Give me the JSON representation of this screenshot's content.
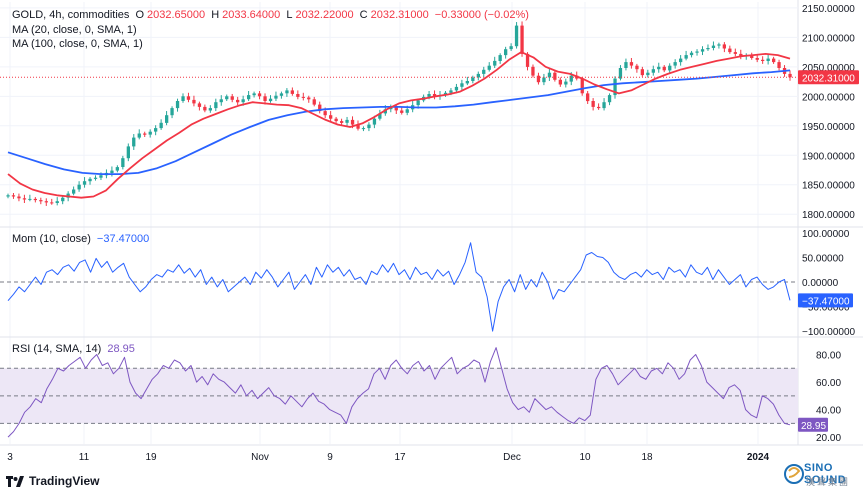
{
  "legend": {
    "symbol": "GOLD, 4h, commodities",
    "o_label": "O",
    "o_value": "2032.65000",
    "h_label": "H",
    "h_value": "2033.64000",
    "l_label": "L",
    "l_value": "2032.22000",
    "c_label": "C",
    "c_value": "2032.31000",
    "change": "−0.33000 (−0.02%)",
    "ma20": "MA (20, close, 0, SMA, 1)",
    "ma100": "MA (100, close, 0, SMA, 1)",
    "mom_name": "Mom (10, close)",
    "mom_value": "−37.47000",
    "rsi_name": "RSI (14, SMA, 14)",
    "rsi_value": "28.95"
  },
  "brand": "TradingView",
  "watermark": {
    "name": "SINO SOUND",
    "sub": "漢聲集團"
  },
  "colors": {
    "up": "#26a69a",
    "down": "#f23645",
    "ma20": "#f23645",
    "ma100": "#2962ff",
    "mom": "#2962ff",
    "rsi": "#7e57c2",
    "rsi_band": "#ede7f6",
    "grid": "#f0f3fa",
    "axis_text": "#131722"
  },
  "chart_data": [
    {
      "type": "candlestick",
      "title": "GOLD, 4h, commodities",
      "ylim": [
        1780,
        2160
      ],
      "y_ticks": [
        "2150.00000",
        "2100.00000",
        "2050.00000",
        "2000.00000",
        "1950.00000",
        "1900.00000",
        "1850.00000",
        "1800.00000"
      ],
      "y_tick_values": [
        2150,
        2100,
        2050,
        2000,
        1950,
        1900,
        1850,
        1800
      ],
      "x_ticks": [
        "3",
        "11",
        "19",
        "Nov",
        "9",
        "17",
        "Dec",
        "10",
        "18",
        "2024"
      ],
      "last_price": "2032.31000",
      "last_value": 2032.31,
      "close_path": [
        1832,
        1830,
        1827,
        1825,
        1826,
        1824,
        1822,
        1820,
        1819,
        1822,
        1828,
        1835,
        1842,
        1850,
        1856,
        1860,
        1862,
        1866,
        1870,
        1874,
        1880,
        1895,
        1915,
        1930,
        1937,
        1935,
        1940,
        1946,
        1955,
        1968,
        1980,
        1992,
        2000,
        1994,
        1988,
        1982,
        1976,
        1980,
        1990,
        1995,
        2000,
        1994,
        1990,
        1995,
        2002,
        2005,
        2000,
        1992,
        1996,
        2001,
        2005,
        2010,
        2004,
        1999,
        1998,
        1995,
        1986,
        1975,
        1968,
        1962,
        1958,
        1955,
        1960,
        1952,
        1945,
        1946,
        1952,
        1962,
        1971,
        1978,
        1983,
        1976,
        1972,
        1978,
        1985,
        1993,
        1999,
        2004,
        2000,
        2002,
        2006,
        2010,
        2016,
        2022,
        2026,
        2032,
        2038,
        2045,
        2052,
        2060,
        2070,
        2080,
        2085,
        2120,
        2072,
        2050,
        2035,
        2024,
        2032,
        2040,
        2028,
        2020,
        2025,
        2035,
        2030,
        2005,
        1992,
        1982,
        1980,
        1990,
        2002,
        2030,
        2048,
        2058,
        2052,
        2046,
        2036,
        2040,
        2046,
        2050,
        2044,
        2052,
        2058,
        2064,
        2070,
        2074,
        2076,
        2080,
        2082,
        2086,
        2088,
        2081,
        2075,
        2072,
        2068,
        2070,
        2065,
        2062,
        2060,
        2064,
        2058,
        2048,
        2038,
        2032.31
      ],
      "ma20": [
        1868,
        1852,
        1842,
        1836,
        1832,
        1830,
        1828,
        1830,
        1840,
        1860,
        1878,
        1895,
        1910,
        1925,
        1938,
        1952,
        1962,
        1970,
        1978,
        1985,
        1990,
        1988,
        1986,
        1985,
        1980,
        1970,
        1960,
        1952,
        1948,
        1954,
        1965,
        1978,
        1988,
        1993,
        1996,
        2000,
        2003,
        2008,
        2018,
        2030,
        2045,
        2062,
        2075,
        2066,
        2050,
        2042,
        2038,
        2030,
        2020,
        2012,
        2005,
        2010,
        2020,
        2030,
        2038,
        2045,
        2050,
        2055,
        2060,
        2064,
        2068,
        2070,
        2072,
        2070,
        2064
      ],
      "ma100": [
        1905,
        1895,
        1885,
        1876,
        1870,
        1868,
        1868,
        1870,
        1878,
        1890,
        1905,
        1920,
        1935,
        1948,
        1960,
        1968,
        1974,
        1978,
        1980,
        1981,
        1982,
        1982,
        1981,
        1981,
        1983,
        1986,
        1990,
        1994,
        1998,
        2002,
        2008,
        2014,
        2019,
        2022,
        2024,
        2026,
        2028,
        2030,
        2033,
        2036,
        2039,
        2041,
        2044
      ]
    },
    {
      "type": "line",
      "title": "Mom (10, close)",
      "ylim": [
        -110,
        110
      ],
      "y_ticks": [
        "100.00000",
        "50.00000",
        "0.00000",
        "−50.00000",
        "−100.00000"
      ],
      "y_tick_values": [
        100,
        50,
        0,
        -50,
        -100
      ],
      "last_value": -37.47,
      "last_label": "−37.47000",
      "values": [
        -38,
        -25,
        -10,
        -20,
        -5,
        10,
        -5,
        20,
        25,
        15,
        30,
        35,
        22,
        40,
        45,
        20,
        48,
        30,
        42,
        20,
        30,
        38,
        10,
        -5,
        -20,
        -10,
        5,
        15,
        10,
        25,
        20,
        35,
        18,
        28,
        10,
        25,
        -5,
        10,
        -10,
        5,
        -20,
        -10,
        0,
        10,
        -5,
        20,
        8,
        25,
        10,
        -10,
        5,
        20,
        -15,
        0,
        15,
        -5,
        30,
        10,
        35,
        20,
        30,
        12,
        25,
        5,
        10,
        -5,
        22,
        15,
        35,
        20,
        38,
        15,
        25,
        5,
        30,
        15,
        20,
        5,
        25,
        12,
        22,
        -5,
        15,
        40,
        80,
        20,
        10,
        -30,
        -100,
        -40,
        -10,
        5,
        -20,
        15,
        -15,
        5,
        -10,
        20,
        0,
        -35,
        -15,
        -20,
        -5,
        10,
        25,
        55,
        60,
        52,
        50,
        40,
        20,
        10,
        5,
        15,
        20,
        10,
        25,
        15,
        20,
        5,
        30,
        20,
        25,
        10,
        35,
        20,
        15,
        30,
        5,
        25,
        10,
        -5,
        5,
        15,
        -10,
        5,
        10,
        -5,
        -15,
        -10,
        0,
        5,
        -37.47
      ]
    },
    {
      "type": "line",
      "title": "RSI (14, SMA, 14)",
      "ylim": [
        15,
        92
      ],
      "y_ticks": [
        "80.00",
        "60.00",
        "40.00",
        "20.00"
      ],
      "y_tick_values": [
        80,
        60,
        40,
        20
      ],
      "band": [
        30,
        70
      ],
      "mid_line": 50,
      "last_value": 28.95,
      "last_label": "28.95",
      "values": [
        20,
        24,
        30,
        38,
        42,
        48,
        45,
        55,
        62,
        70,
        68,
        72,
        75,
        78,
        70,
        76,
        80,
        72,
        74,
        66,
        70,
        78,
        60,
        52,
        48,
        55,
        62,
        66,
        72,
        70,
        76,
        74,
        68,
        72,
        60,
        64,
        58,
        66,
        62,
        60,
        56,
        52,
        58,
        50,
        54,
        48,
        52,
        56,
        50,
        48,
        44,
        50,
        46,
        42,
        48,
        52,
        46,
        44,
        40,
        38,
        36,
        30,
        42,
        48,
        52,
        55,
        66,
        70,
        62,
        72,
        76,
        70,
        66,
        72,
        75,
        68,
        72,
        62,
        70,
        74,
        78,
        66,
        70,
        72,
        76,
        74,
        60,
        75,
        85,
        70,
        55,
        45,
        40,
        42,
        38,
        48,
        44,
        40,
        42,
        38,
        35,
        32,
        30,
        34,
        32,
        36,
        62,
        70,
        72,
        66,
        58,
        62,
        66,
        70,
        64,
        62,
        68,
        70,
        66,
        74,
        70,
        62,
        66,
        76,
        80,
        72,
        60,
        56,
        52,
        48,
        56,
        58,
        54,
        40,
        36,
        34,
        50,
        48,
        44,
        36,
        30,
        28.95
      ]
    }
  ]
}
